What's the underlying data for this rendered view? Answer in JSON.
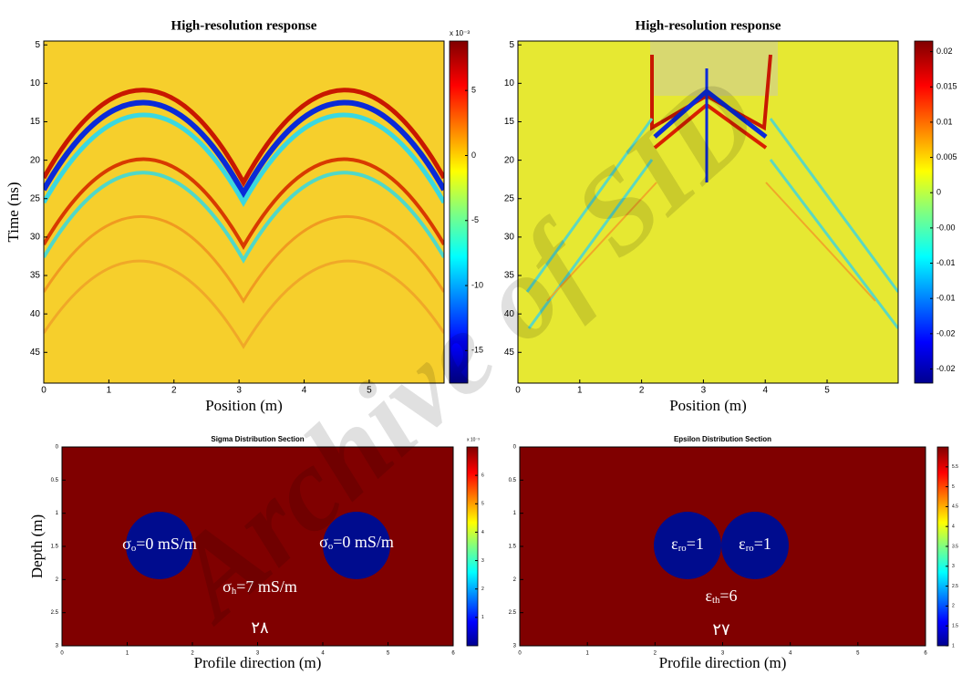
{
  "chart_data": [
    {
      "type": "heatmap",
      "title": "High-resolution response",
      "xlabel": "Position (m)",
      "ylabel": "Time (ns)",
      "xlim": [
        0,
        6.15
      ],
      "xticks": [
        0,
        1,
        2,
        3,
        4,
        5
      ],
      "ylim": [
        4.5,
        49
      ],
      "y_inverted": true,
      "yticks": [
        5,
        10,
        15,
        20,
        25,
        30,
        35,
        40,
        45
      ],
      "colorbar_label": "x 10⁻³",
      "clim": [
        -17.5,
        8.8
      ],
      "cticks": [
        5,
        0,
        -5,
        -10,
        -15
      ]
    },
    {
      "type": "heatmap",
      "title": "High-resolution response",
      "xlabel": "Position (m)",
      "xlim": [
        0,
        6.15
      ],
      "xticks": [
        0,
        1,
        2,
        3,
        4,
        5
      ],
      "ylim": [
        4.5,
        49
      ],
      "y_inverted": true,
      "yticks": [
        5,
        10,
        15,
        20,
        25,
        30,
        35,
        40,
        45
      ],
      "clim": [
        -0.027,
        0.0215
      ],
      "cticks": [
        0.02,
        0.015,
        0.01,
        0.005,
        0,
        {
          "value": -0.005,
          "label": "-0.00"
        },
        {
          "value": -0.01,
          "label": "-0.01"
        },
        {
          "value": -0.015,
          "label": "-0.01"
        },
        {
          "value": -0.02,
          "label": "-0.02"
        },
        {
          "value": -0.025,
          "label": "-0.02"
        }
      ]
    },
    {
      "type": "section",
      "title": "Sigma Distribution Section",
      "xlabel": "Profile direction (m)",
      "ylabel": "Depth (m)",
      "xlim": [
        0,
        6
      ],
      "xticks": [
        0,
        1,
        2,
        3,
        4,
        5,
        6
      ],
      "ylim": [
        0,
        3
      ],
      "y_inverted": true,
      "yticks": [
        0,
        0.5,
        1,
        1.5,
        2,
        2.5,
        3
      ],
      "colorbar_label": "x 10⁻³",
      "clim": [
        0,
        7
      ],
      "cticks": [
        6,
        5,
        4,
        3,
        2,
        1
      ],
      "annotations": [
        {
          "symbol": "σ",
          "sub": "o",
          "text": "=0 mS/m"
        },
        {
          "symbol": "σ",
          "sub": "o",
          "text": "=0 mS/m"
        },
        {
          "symbol": "σ",
          "sub": "h",
          "text": "=7 mS/m"
        },
        {
          "symbol": "۲۸",
          "sub": "",
          "text": ""
        }
      ]
    },
    {
      "type": "section",
      "title": "Epsilon Distribution Section",
      "xlabel": "Profile direction (m)",
      "xlim": [
        0,
        6
      ],
      "xticks": [
        0,
        1,
        2,
        3,
        4,
        5,
        6
      ],
      "ylim": [
        0,
        3
      ],
      "y_inverted": true,
      "yticks": [
        0,
        0.5,
        1,
        1.5,
        2,
        2.5,
        3
      ],
      "clim": [
        1,
        6
      ],
      "cticks": [
        5.5,
        5,
        4.5,
        4,
        3.5,
        3,
        2.5,
        2,
        1.5,
        1
      ],
      "annotations": [
        {
          "symbol": "ε",
          "sub": "ro",
          "text": "=1"
        },
        {
          "symbol": "ε",
          "sub": "ro",
          "text": "=1"
        },
        {
          "symbol": "ε",
          "sub": "th",
          "text": "=6"
        },
        {
          "symbol": "۲۷",
          "sub": "",
          "text": ""
        }
      ]
    }
  ],
  "watermark": "Archive of SID"
}
